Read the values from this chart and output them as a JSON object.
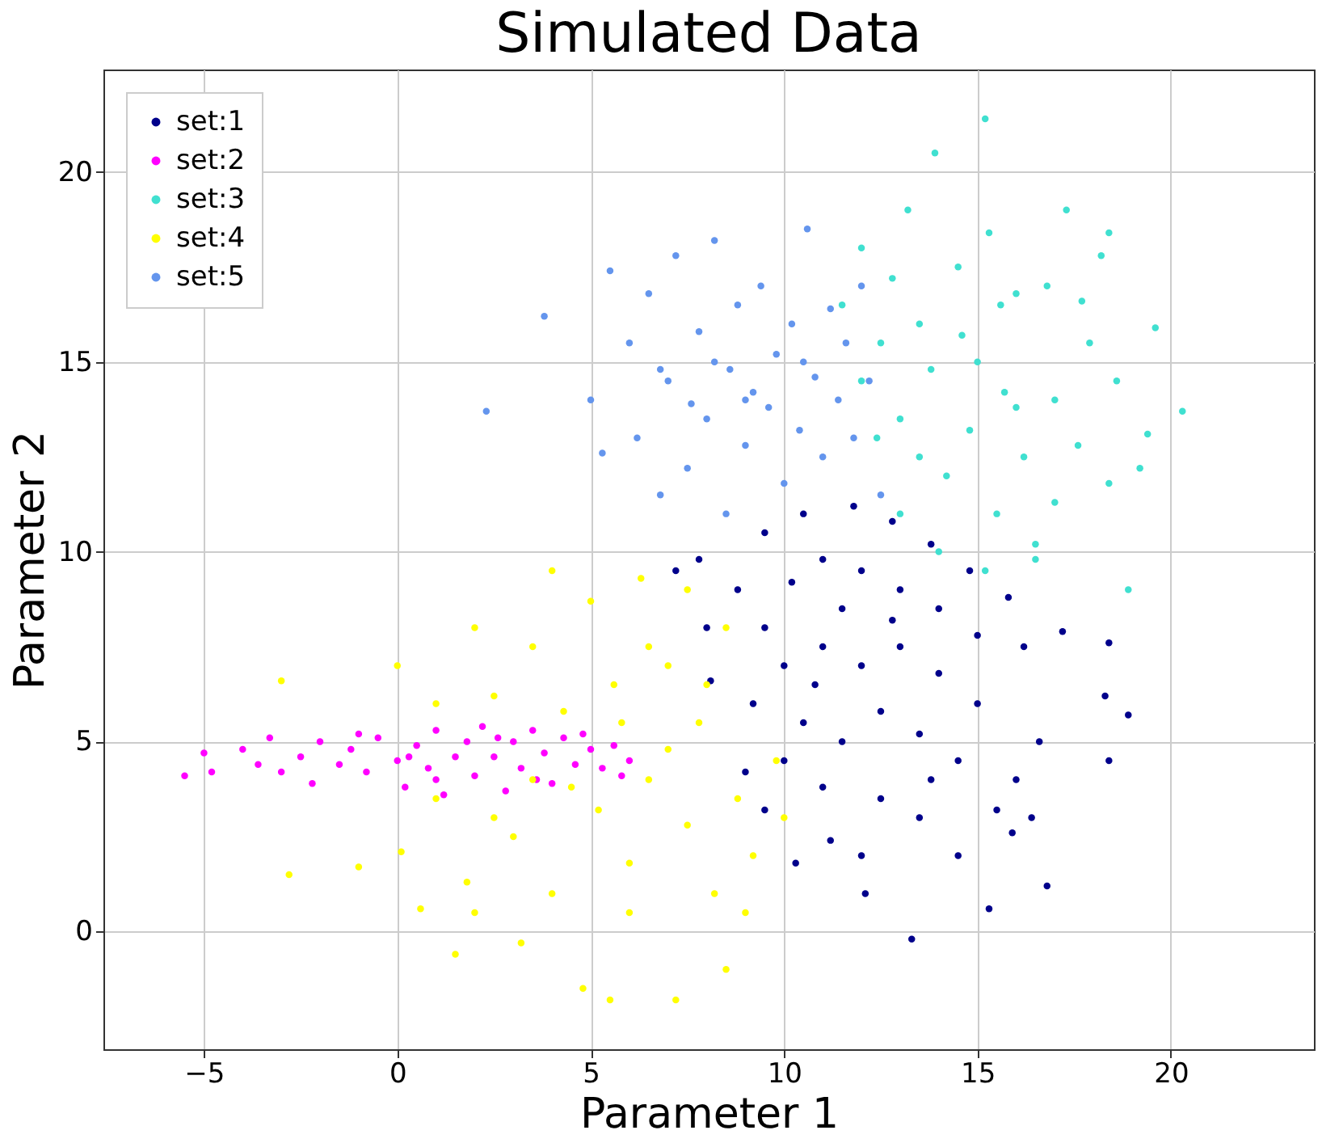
{
  "chart_data": {
    "type": "scatter",
    "title": "Simulated Data",
    "xlabel": "Parameter 1",
    "ylabel": "Parameter 2",
    "xlim": [
      -7.6,
      23.7
    ],
    "ylim": [
      -3.1,
      22.7
    ],
    "xticks": [
      -5,
      0,
      5,
      10,
      15,
      20
    ],
    "yticks": [
      0,
      5,
      10,
      15,
      20
    ],
    "grid": true,
    "legend": "top left",
    "marker": "circle",
    "series": [
      {
        "name": "set:1",
        "color": "#00008b",
        "x": [
          7.2,
          7.8,
          8.0,
          8.1,
          9.0,
          9.5,
          10.3,
          11.2,
          12.1,
          13.3,
          14.5,
          15.3,
          15.9,
          16.4,
          16.8,
          16.6,
          18.4,
          18.9,
          18.3,
          18.4,
          17.2,
          16.2,
          15.8,
          14.8,
          13.8,
          12.8,
          11.8,
          10.5,
          9.5,
          8.8,
          9.5,
          10.2,
          11.0,
          12.0,
          13.0,
          14.0,
          15.0,
          10.0,
          11.0,
          12.0,
          13.0,
          14.0,
          15.0,
          10.5,
          11.5,
          12.5,
          13.5,
          14.5,
          10.0,
          11.0,
          12.5,
          13.5,
          9.2,
          11.5,
          12.8,
          16.0,
          15.5,
          12.0,
          10.8,
          13.8
        ],
        "values": [
          9.5,
          9.8,
          8.0,
          6.6,
          4.2,
          3.2,
          1.8,
          2.4,
          1.0,
          -0.2,
          2.0,
          0.6,
          2.6,
          3.0,
          1.2,
          5.0,
          4.5,
          5.7,
          6.2,
          7.6,
          7.9,
          7.5,
          8.8,
          9.5,
          10.2,
          10.8,
          11.2,
          11.0,
          10.5,
          9.0,
          8.0,
          9.2,
          9.8,
          9.5,
          9.0,
          8.5,
          7.8,
          7.0,
          7.5,
          7.0,
          7.5,
          6.8,
          6.0,
          5.5,
          5.0,
          5.8,
          5.2,
          4.5,
          4.5,
          3.8,
          3.5,
          3.0,
          6.0,
          8.5,
          8.2,
          4.0,
          3.2,
          2.0,
          6.5,
          4.0
        ]
      },
      {
        "name": "set:2",
        "color": "#ff00ff",
        "x": [
          -5.5,
          -5.0,
          -4.8,
          -4.0,
          -3.6,
          -3.0,
          -2.5,
          -2.2,
          -2.0,
          -1.5,
          -1.2,
          -0.8,
          -0.5,
          0.0,
          0.2,
          0.5,
          0.8,
          1.0,
          1.2,
          1.5,
          1.8,
          2.0,
          2.2,
          2.5,
          2.8,
          3.0,
          3.2,
          3.5,
          3.8,
          4.0,
          4.3,
          4.6,
          5.0,
          5.3,
          5.6,
          6.0,
          5.8,
          1.0,
          2.6,
          0.3,
          -1.0,
          3.6,
          4.8,
          -3.3
        ],
        "values": [
          4.1,
          4.7,
          4.2,
          4.8,
          4.4,
          4.2,
          4.6,
          3.9,
          5.0,
          4.4,
          4.8,
          4.2,
          5.1,
          4.5,
          3.8,
          4.9,
          4.3,
          5.3,
          3.6,
          4.6,
          5.0,
          4.1,
          5.4,
          4.6,
          3.7,
          5.0,
          4.3,
          5.3,
          4.7,
          3.9,
          5.1,
          4.4,
          4.8,
          4.3,
          4.9,
          4.5,
          4.1,
          4.0,
          5.1,
          4.6,
          5.2,
          4.0,
          5.2,
          5.1
        ]
      },
      {
        "name": "set:3",
        "color": "#40e0d0",
        "x": [
          11.5,
          12.0,
          12.5,
          12.8,
          13.0,
          13.2,
          13.5,
          13.8,
          13.9,
          14.2,
          14.5,
          14.8,
          15.0,
          15.2,
          15.3,
          15.5,
          15.7,
          16.0,
          16.2,
          16.5,
          16.8,
          17.0,
          17.3,
          17.6,
          17.9,
          18.2,
          18.4,
          18.6,
          18.9,
          19.4,
          19.6,
          20.3,
          19.2,
          18.4,
          12.4,
          13.0,
          14.0,
          15.2,
          16.5,
          12.0,
          14.6,
          16.0,
          15.6,
          13.5,
          17.0,
          17.7
        ],
        "values": [
          16.5,
          18.0,
          15.5,
          17.2,
          13.5,
          19.0,
          16.0,
          14.8,
          20.5,
          12.0,
          17.5,
          13.2,
          15.0,
          21.4,
          18.4,
          11.0,
          14.2,
          16.8,
          12.5,
          10.2,
          17.0,
          14.0,
          19.0,
          12.8,
          15.5,
          17.8,
          11.8,
          14.5,
          9.0,
          13.1,
          15.9,
          13.7,
          12.2,
          18.4,
          13.0,
          11.0,
          10.0,
          9.5,
          9.8,
          14.5,
          15.7,
          13.8,
          16.5,
          12.5,
          11.3,
          16.6
        ]
      },
      {
        "name": "set:4",
        "color": "#ffff00",
        "x": [
          -3.0,
          -2.8,
          -1.0,
          0.0,
          0.1,
          0.6,
          1.0,
          1.5,
          1.8,
          2.0,
          2.5,
          3.0,
          3.2,
          3.5,
          4.0,
          4.3,
          4.8,
          5.0,
          5.2,
          5.5,
          5.6,
          6.0,
          6.3,
          6.5,
          7.0,
          7.2,
          7.5,
          7.8,
          8.2,
          8.5,
          8.8,
          9.2,
          9.8,
          10.0,
          6.0,
          4.5,
          3.5,
          5.8,
          7.0,
          8.0,
          2.5,
          1.0,
          6.5,
          4.0,
          8.5,
          9.0,
          2.0,
          7.5
        ],
        "values": [
          6.6,
          1.5,
          1.7,
          7.0,
          2.1,
          0.6,
          3.5,
          -0.6,
          1.3,
          8.0,
          6.2,
          2.5,
          -0.3,
          7.5,
          1.0,
          5.8,
          -1.5,
          8.7,
          3.2,
          -1.8,
          6.5,
          1.8,
          9.3,
          4.0,
          7.0,
          -1.8,
          2.8,
          5.5,
          1.0,
          8.0,
          3.5,
          2.0,
          4.5,
          3.0,
          0.5,
          3.8,
          4.0,
          5.5,
          4.8,
          6.5,
          3.0,
          6.0,
          7.5,
          9.5,
          -1.0,
          0.5,
          0.5,
          9.0
        ]
      },
      {
        "name": "set:5",
        "color": "#6495ed",
        "x": [
          2.3,
          3.8,
          5.5,
          5.0,
          5.3,
          6.0,
          6.2,
          6.5,
          6.8,
          7.0,
          7.2,
          7.5,
          7.8,
          8.0,
          8.2,
          8.5,
          8.6,
          8.8,
          9.0,
          9.2,
          9.4,
          9.6,
          9.8,
          10.0,
          10.2,
          10.4,
          10.6,
          10.8,
          11.0,
          11.2,
          11.4,
          11.6,
          11.8,
          12.0,
          12.2,
          12.5,
          8.2,
          9.0,
          7.6,
          6.8,
          10.5
        ],
        "values": [
          13.7,
          16.2,
          17.4,
          14.0,
          12.6,
          15.5,
          13.0,
          16.8,
          11.5,
          14.5,
          17.8,
          12.2,
          15.8,
          13.5,
          18.2,
          11.0,
          14.8,
          16.5,
          12.8,
          14.2,
          17.0,
          13.8,
          15.2,
          11.8,
          16.0,
          13.2,
          18.5,
          14.6,
          12.5,
          16.4,
          14.0,
          15.5,
          13.0,
          17.0,
          14.5,
          11.5,
          15.0,
          14.0,
          13.9,
          14.8,
          15.0
        ]
      }
    ]
  }
}
